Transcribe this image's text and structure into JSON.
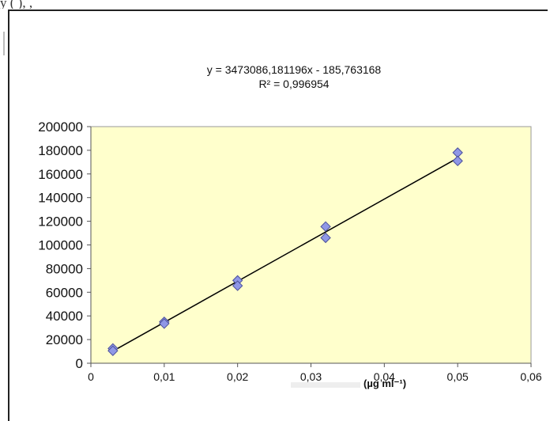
{
  "header": {
    "fragment": "y    (  ),     ,"
  },
  "chart_data": {
    "type": "scatter",
    "title": "",
    "equation_line1": "y = 3473086,181196x - 185,763168",
    "equation_line2": "R² = 0,996954",
    "xlabel_visible": "(µg ml⁻¹)",
    "ylabel_visible": "",
    "xlim": [
      0,
      0.06
    ],
    "ylim": [
      0,
      200000
    ],
    "x_ticks": [
      0,
      0.01,
      0.02,
      0.03,
      0.04,
      0.05,
      0.06
    ],
    "x_tick_labels": [
      "0",
      "0,01",
      "0,02",
      "0,03",
      "0,04",
      "0,05",
      "0,06"
    ],
    "y_ticks": [
      0,
      20000,
      40000,
      60000,
      80000,
      100000,
      120000,
      140000,
      160000,
      180000,
      200000
    ],
    "y_tick_labels": [
      "0",
      "20000",
      "40000",
      "60000",
      "80000",
      "100000",
      "120000",
      "140000",
      "160000",
      "180000",
      "200000"
    ],
    "points": [
      {
        "x": 0.003,
        "y": 12500
      },
      {
        "x": 0.003,
        "y": 10500
      },
      {
        "x": 0.01,
        "y": 35000
      },
      {
        "x": 0.01,
        "y": 33500
      },
      {
        "x": 0.02,
        "y": 70000
      },
      {
        "x": 0.02,
        "y": 65500
      },
      {
        "x": 0.032,
        "y": 115500
      },
      {
        "x": 0.032,
        "y": 106000
      },
      {
        "x": 0.05,
        "y": 178000
      },
      {
        "x": 0.05,
        "y": 171000
      }
    ],
    "trendline": {
      "slope": 3473086.181196,
      "intercept": -185.763168,
      "x_start": 0.003,
      "x_end": 0.05
    },
    "grid": false,
    "legend": "none",
    "plot_background": "#ffffcc",
    "marker_color": "#8f97e6",
    "marker_edge": "#4a4f9a",
    "line_color": "#000000"
  }
}
